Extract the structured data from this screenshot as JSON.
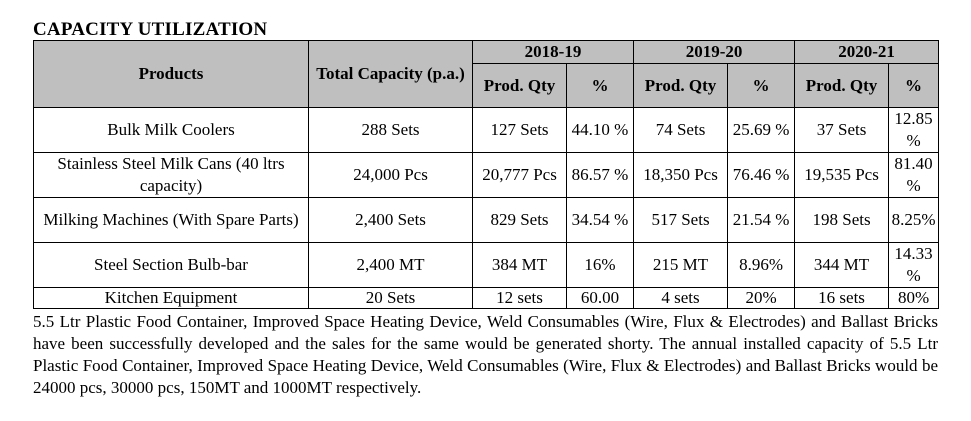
{
  "title": "CAPACITY UTILIZATION",
  "table": {
    "headers": {
      "products": "Products",
      "total_capacity": "Total Capacity (p.a.)",
      "years": [
        "2018-19",
        "2019-20",
        "2020-21"
      ],
      "prod_qty": "Prod. Qty",
      "percent": "%"
    },
    "rows": [
      {
        "product": "Bulk Milk Coolers",
        "capacity": "288 Sets",
        "y2018_qty": "127 Sets",
        "y2018_pct": "44.10 %",
        "y2019_qty": "74 Sets",
        "y2019_pct": "25.69 %",
        "y2020_qty": "37 Sets",
        "y2020_pct": "12.85 %"
      },
      {
        "product": "Stainless Steel Milk Cans (40 ltrs capacity)",
        "capacity": "24,000 Pcs",
        "y2018_qty": "20,777 Pcs",
        "y2018_pct": "86.57 %",
        "y2019_qty": "18,350 Pcs",
        "y2019_pct": "76.46 %",
        "y2020_qty": "19,535 Pcs",
        "y2020_pct": "81.40 %"
      },
      {
        "product": "Milking Machines (With Spare Parts)",
        "capacity": "2,400 Sets",
        "y2018_qty": "829 Sets",
        "y2018_pct": "34.54 %",
        "y2019_qty": "517 Sets",
        "y2019_pct": "21.54 %",
        "y2020_qty": "198 Sets",
        "y2020_pct": "8.25%"
      },
      {
        "product": "Steel Section Bulb-bar",
        "capacity": "2,400 MT",
        "y2018_qty": "384 MT",
        "y2018_pct": "16%",
        "y2019_qty": "215 MT",
        "y2019_pct": "8.96%",
        "y2020_qty": "344 MT",
        "y2020_pct": "14.33 %"
      },
      {
        "product": "Kitchen Equipment",
        "capacity": "20 Sets",
        "y2018_qty": "12 sets",
        "y2018_pct": "60.00",
        "y2019_qty": "4 sets",
        "y2019_pct": "20%",
        "y2020_qty": "16 sets",
        "y2020_pct": "80%"
      }
    ]
  },
  "note": "5.5 Ltr Plastic Food Container, Improved Space Heating Device, Weld Consumables (Wire, Flux & Electrodes) and Ballast Bricks have been successfully developed and the sales for the same would be generated shorty. The annual installed capacity of 5.5 Ltr Plastic Food Container, Improved Space Heating Device, Weld Consumables (Wire, Flux & Electrodes) and Ballast Bricks would be 24000 pcs, 30000 pcs, 150MT and 1000MT respectively."
}
